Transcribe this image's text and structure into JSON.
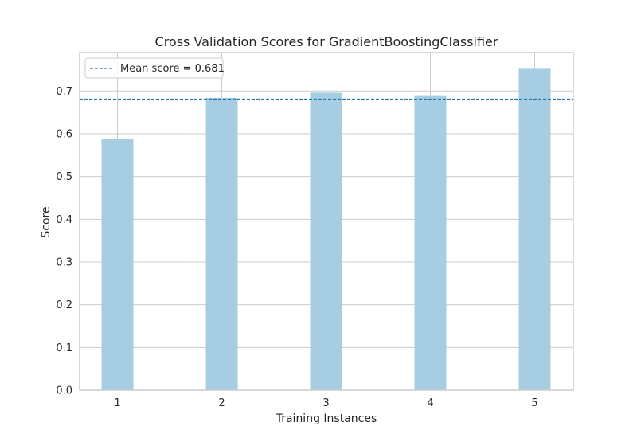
{
  "chart_data": {
    "type": "bar",
    "title": "Cross Validation Scores for GradientBoostingClassifier",
    "xlabel": "Training Instances",
    "ylabel": "Score",
    "categories": [
      "1",
      "2",
      "3",
      "4",
      "5"
    ],
    "values": [
      0.587,
      0.684,
      0.696,
      0.69,
      0.752
    ],
    "ylim": [
      0,
      0.79
    ],
    "yticks": [
      "0.0",
      "0.1",
      "0.2",
      "0.3",
      "0.4",
      "0.5",
      "0.6",
      "0.7"
    ],
    "mean_line": {
      "value": 0.681,
      "label": "Mean score = 0.681",
      "color": "#1f77b4"
    },
    "legend_position": "top-left",
    "grid": true,
    "colors": {
      "bar": "#a6cde2",
      "grid": "#cccccc",
      "frame": "#cccccc"
    }
  }
}
